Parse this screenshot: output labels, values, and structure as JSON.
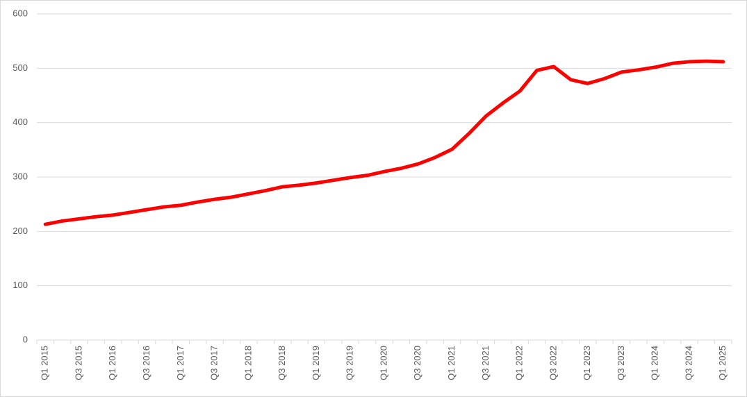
{
  "chart_data": {
    "type": "line",
    "categories": [
      "Q1 2015",
      null,
      "Q3 2015",
      null,
      "Q1 2016",
      null,
      "Q3 2016",
      null,
      "Q1 2017",
      null,
      "Q3 2017",
      null,
      "Q1 2018",
      null,
      "Q3 2018",
      null,
      "Q1 2019",
      null,
      "Q3 2019",
      null,
      "Q1 2020",
      null,
      "Q3 2020",
      null,
      "Q1 2021",
      null,
      "Q3 2021",
      null,
      "Q1 2022",
      null,
      "Q3 2022",
      null,
      "Q1 2023",
      null,
      "Q3 2023",
      null,
      "Q1 2024",
      null,
      "Q3 2024",
      null,
      "Q1 2025"
    ],
    "series": [
      {
        "color": "#ff0000",
        "values": [
          213,
          219,
          223,
          227,
          230,
          235,
          240,
          245,
          248,
          254,
          259,
          263,
          269,
          275,
          282,
          285,
          289,
          294,
          299,
          303,
          310,
          316,
          324,
          336,
          351,
          380,
          412,
          436,
          458,
          496,
          503,
          479,
          472,
          481,
          493,
          497,
          502,
          509,
          512,
          513,
          512
        ]
      }
    ],
    "ylim": [
      0,
      600
    ],
    "yticks": [
      0,
      100,
      200,
      300,
      400,
      500,
      600
    ],
    "grid": true
  }
}
